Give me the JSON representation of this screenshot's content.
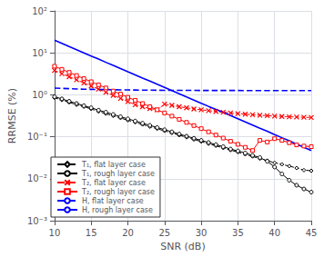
{
  "chart_data": {
    "type": "line",
    "xlabel": "SNR (dB)",
    "ylabel": "RRMSE (%)",
    "log": "y",
    "grid": true,
    "legend": "lower left",
    "x": [
      10,
      11,
      12,
      13,
      14,
      15,
      16,
      17,
      18,
      19,
      20,
      21,
      22,
      23,
      24,
      25,
      26,
      27,
      28,
      29,
      30,
      31,
      32,
      33,
      34,
      35,
      36,
      37,
      38,
      39,
      40,
      41,
      42,
      43,
      44,
      45
    ],
    "xlim": [
      10,
      45
    ],
    "xticks": [
      10,
      15,
      20,
      25,
      30,
      35,
      40,
      45
    ],
    "ylim": [
      0.001,
      100
    ],
    "yticks": [
      {
        "value": 0.001,
        "label": "10⁻³"
      },
      {
        "value": 0.01,
        "label": "10⁻²"
      },
      {
        "value": 0.1,
        "label": "10⁻¹"
      },
      {
        "value": 1,
        "label": "10⁰"
      },
      {
        "value": 10,
        "label": "10¹"
      },
      {
        "value": 100,
        "label": "10²"
      }
    ],
    "series": [
      {
        "name": "T₁, flat layer case",
        "color": "black",
        "line_style": "dashed",
        "marker": "diamond",
        "values": [
          0.85,
          0.75,
          0.66,
          0.58,
          0.52,
          0.46,
          0.4,
          0.355,
          0.315,
          0.28,
          0.248,
          0.22,
          0.196,
          0.174,
          0.155,
          0.138,
          0.123,
          0.109,
          0.097,
          0.086,
          0.077,
          0.068,
          0.061,
          0.054,
          0.048,
          0.043,
          0.038,
          0.034,
          0.03,
          0.027,
          0.024,
          0.022,
          0.02,
          0.018,
          0.016,
          0.0155
        ]
      },
      {
        "name": "T₁, rough layer case",
        "color": "black",
        "line_style": "solid",
        "marker": "circle",
        "values": [
          0.9,
          0.8,
          0.7,
          0.62,
          0.55,
          0.49,
          0.43,
          0.385,
          0.34,
          0.3,
          0.267,
          0.237,
          0.21,
          0.187,
          0.166,
          0.147,
          0.131,
          0.116,
          0.103,
          0.092,
          0.082,
          0.073,
          0.065,
          0.058,
          0.051,
          0.046,
          0.041,
          0.036,
          0.032,
          0.026,
          0.019,
          0.013,
          0.0092,
          0.007,
          0.0057,
          0.0048
        ]
      },
      {
        "name": "T₂, flat layer case",
        "color": "red",
        "line_style": "dashed",
        "marker": "x",
        "values": [
          3.8,
          3.2,
          2.7,
          2.28,
          1.92,
          1.62,
          1.37,
          1.15,
          0.97,
          0.82,
          0.69,
          0.58,
          0.52,
          0.47,
          0.44,
          0.6,
          0.56,
          0.52,
          0.49,
          0.46,
          0.44,
          0.42,
          0.4,
          0.385,
          0.37,
          0.357,
          0.345,
          0.335,
          0.326,
          0.318,
          0.311,
          0.305,
          0.3,
          0.295,
          0.291,
          0.288
        ]
      },
      {
        "name": "T₂, rough layer case",
        "color": "red",
        "line_style": "solid",
        "marker": "square",
        "values": [
          4.8,
          4.05,
          3.42,
          2.88,
          2.43,
          2.05,
          1.73,
          1.46,
          1.23,
          1.04,
          0.87,
          0.74,
          0.62,
          0.52,
          0.44,
          0.37,
          0.31,
          0.26,
          0.22,
          0.185,
          0.156,
          0.131,
          0.11,
          0.093,
          0.078,
          0.066,
          0.056,
          0.047,
          0.082,
          0.075,
          0.09,
          0.082,
          0.072,
          0.064,
          0.06,
          0.058
        ]
      },
      {
        "name": "H, flat layer case",
        "color": "blue",
        "line_style": "dashed",
        "values": [
          1.45,
          1.42,
          1.4,
          1.38,
          1.36,
          1.35,
          1.34,
          1.33,
          1.32,
          1.31,
          1.305,
          1.3,
          1.295,
          1.29,
          1.285,
          1.28,
          1.278,
          1.276,
          1.274,
          1.272,
          1.271,
          1.27,
          1.269,
          1.268,
          1.267,
          1.266,
          1.265,
          1.265,
          1.264,
          1.263,
          1.263,
          1.262,
          1.262,
          1.261,
          1.261,
          1.26
        ]
      },
      {
        "name": "H, rough layer case",
        "color": "blue",
        "line_style": "solid",
        "values": [
          20,
          16.8,
          14.1,
          11.9,
          10.0,
          8.4,
          7.1,
          5.95,
          5.01,
          4.22,
          3.55,
          2.99,
          2.51,
          2.12,
          1.78,
          1.5,
          1.26,
          1.06,
          0.89,
          0.75,
          0.63,
          0.53,
          0.45,
          0.38,
          0.32,
          0.27,
          0.225,
          0.19,
          0.16,
          0.135,
          0.113,
          0.095,
          0.08,
          0.067,
          0.056,
          0.047
        ]
      }
    ]
  }
}
